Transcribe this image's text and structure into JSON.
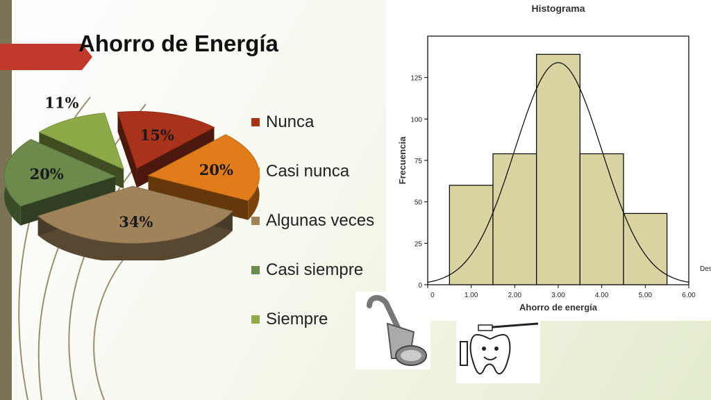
{
  "slide": {
    "title": "Ahorro de Energía",
    "accent_color": "#c0392b"
  },
  "chart_data": [
    {
      "type": "pie",
      "categories": [
        "Nunca",
        "Casi nunca",
        "Algunas veces",
        "Casi siempre",
        "Siempre"
      ],
      "values": [
        15,
        20,
        34,
        20,
        11
      ],
      "labels": [
        "15%",
        "20%",
        "34%",
        "20%",
        "11%"
      ],
      "colors": [
        "#a8321a",
        "#e07c1a",
        "#a0835a",
        "#6b8a4b",
        "#8eaa48"
      ],
      "legend_position": "right"
    },
    {
      "type": "bar",
      "title": "Histograma",
      "xlabel": "Ahorro de energía",
      "ylabel": "Frecuencia",
      "categories": [
        "1",
        "2",
        "3",
        "4",
        "5"
      ],
      "bins": [
        [
          0.5,
          1.5
        ],
        [
          1.5,
          2.5
        ],
        [
          2.5,
          3.5
        ],
        [
          3.5,
          4.5
        ],
        [
          4.5,
          5.5
        ]
      ],
      "values": [
        60,
        79,
        139,
        79,
        43
      ],
      "xlim": [
        0,
        6
      ],
      "ylim": [
        0,
        150
      ],
      "x_ticks": [
        "0.00",
        "1.00",
        "2.00",
        "3.00",
        "4.00",
        "5.00",
        "6.00"
      ],
      "y_ticks": [
        "0",
        "25",
        "50",
        "75",
        "100",
        "125"
      ],
      "normal_curve": {
        "mean": 3.0,
        "peak": 134
      },
      "bar_color": "#d8d3a1",
      "side_text": "Des"
    }
  ],
  "images": [
    {
      "icon": "shower-head-icon"
    },
    {
      "icon": "tooth-brushing-icon"
    }
  ]
}
